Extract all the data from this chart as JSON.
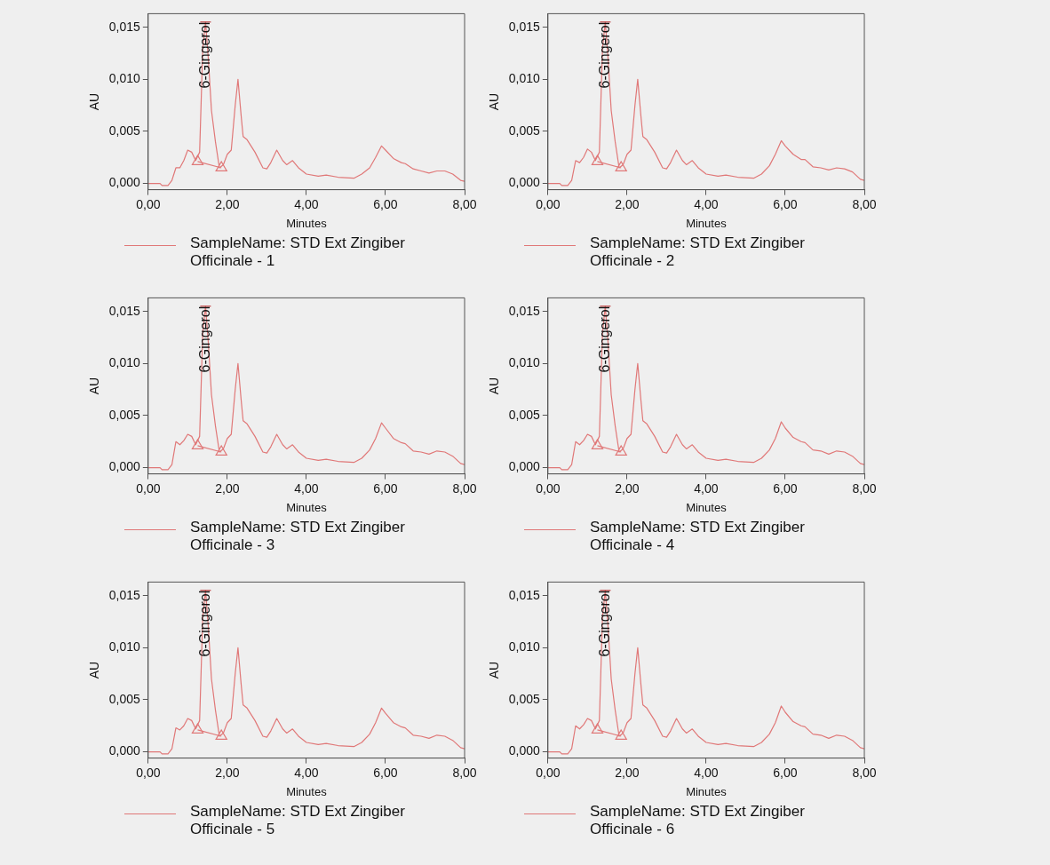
{
  "chart_data": [
    {
      "type": "line",
      "xlabel": "Minutes",
      "ylabel": "AU",
      "xlim": [
        0,
        8
      ],
      "ylim": [
        -0.0006,
        0.0163
      ],
      "xticks": [
        {
          "value": 0,
          "label": "0,00"
        },
        {
          "value": 2,
          "label": "2,00"
        },
        {
          "value": 4,
          "label": "4,00"
        },
        {
          "value": 6,
          "label": "6,00"
        },
        {
          "value": 8,
          "label": "8,00"
        }
      ],
      "yticks": [
        {
          "value": 0,
          "label": "0,000"
        },
        {
          "value": 0.005,
          "label": "0,005"
        },
        {
          "value": 0.01,
          "label": "0,010"
        },
        {
          "value": 0.015,
          "label": "0,015"
        }
      ],
      "legend": "bottom",
      "marker": "none",
      "annotations": [
        "6-Gingerol"
      ],
      "series": [
        {
          "name": "SampleName: STD Ext Zingiber Officinale - 1",
          "color": "#e07878",
          "x": [
            0,
            0.3,
            0.35,
            0.5,
            0.6,
            0.7,
            0.8,
            0.9,
            1.0,
            1.1,
            1.2,
            1.3,
            1.38,
            1.45,
            1.52,
            1.6,
            1.7,
            1.8,
            1.9,
            2.0,
            2.1,
            2.2,
            2.27,
            2.35,
            2.4,
            2.5,
            2.7,
            2.9,
            3.0,
            3.1,
            3.25,
            3.4,
            3.5,
            3.65,
            3.8,
            4.0,
            4.3,
            4.5,
            4.8,
            5.2,
            5.4,
            5.6,
            5.75,
            5.9,
            6.0,
            6.2,
            6.4,
            6.5,
            6.7,
            6.9,
            7.1,
            7.3,
            7.5,
            7.7,
            7.9,
            8.0
          ],
          "values": [
            0,
            0,
            -0.0002,
            -0.0002,
            0.0003,
            0.0015,
            0.0015,
            0.0022,
            0.0032,
            0.003,
            0.0022,
            0.003,
            0.013,
            0.0155,
            0.012,
            0.007,
            0.004,
            0.0015,
            0.0018,
            0.0028,
            0.0032,
            0.0075,
            0.01,
            0.0065,
            0.0045,
            0.0042,
            0.003,
            0.0015,
            0.0014,
            0.002,
            0.0032,
            0.0022,
            0.0018,
            0.0022,
            0.0015,
            0.0009,
            0.0007,
            0.0008,
            0.0006,
            0.0005,
            0.0009,
            0.0015,
            0.0025,
            0.0036,
            0.0032,
            0.0024,
            0.002,
            0.0019,
            0.0014,
            0.0012,
            0.001,
            0.0012,
            0.0012,
            0.0009,
            0.0003,
            0.0002
          ]
        },
        {
          "type": "line",
          "marker": "triangle",
          "color": "#e07878",
          "x": [
            1.25,
            1.85
          ],
          "values": [
            0.0021,
            0.0015
          ]
        }
      ]
    },
    {
      "type": "line",
      "xlabel": "Minutes",
      "ylabel": "AU",
      "xlim": [
        0,
        8
      ],
      "ylim": [
        -0.0006,
        0.0163
      ],
      "xticks": [
        {
          "value": 0,
          "label": "0,00"
        },
        {
          "value": 2,
          "label": "2,00"
        },
        {
          "value": 4,
          "label": "4,00"
        },
        {
          "value": 6,
          "label": "6,00"
        },
        {
          "value": 8,
          "label": "8,00"
        }
      ],
      "yticks": [
        {
          "value": 0,
          "label": "0,000"
        },
        {
          "value": 0.005,
          "label": "0,005"
        },
        {
          "value": 0.01,
          "label": "0,010"
        },
        {
          "value": 0.015,
          "label": "0,015"
        }
      ],
      "legend": "bottom",
      "marker": "none",
      "annotations": [
        "6-Gingerol"
      ],
      "series": [
        {
          "name": "SampleName: STD Ext Zingiber Officinale - 2",
          "color": "#e07878",
          "x": [
            0,
            0.3,
            0.35,
            0.5,
            0.6,
            0.7,
            0.8,
            0.9,
            1.0,
            1.1,
            1.2,
            1.3,
            1.38,
            1.45,
            1.52,
            1.6,
            1.7,
            1.8,
            1.9,
            2.0,
            2.1,
            2.2,
            2.27,
            2.35,
            2.4,
            2.5,
            2.7,
            2.9,
            3.0,
            3.1,
            3.25,
            3.4,
            3.5,
            3.65,
            3.8,
            4.0,
            4.3,
            4.5,
            4.8,
            5.2,
            5.4,
            5.6,
            5.75,
            5.9,
            6.0,
            6.2,
            6.4,
            6.5,
            6.7,
            6.9,
            7.1,
            7.3,
            7.5,
            7.7,
            7.9,
            8.0
          ],
          "values": [
            0,
            0,
            -0.0002,
            -0.0002,
            0.0003,
            0.0022,
            0.002,
            0.0025,
            0.0033,
            0.003,
            0.0022,
            0.003,
            0.013,
            0.0155,
            0.012,
            0.007,
            0.004,
            0.0015,
            0.0018,
            0.0028,
            0.0032,
            0.0075,
            0.01,
            0.0065,
            0.0045,
            0.0042,
            0.003,
            0.0015,
            0.0014,
            0.002,
            0.0032,
            0.0022,
            0.0018,
            0.0022,
            0.0015,
            0.0009,
            0.0007,
            0.0008,
            0.0006,
            0.0005,
            0.0009,
            0.0017,
            0.0028,
            0.0041,
            0.0036,
            0.0028,
            0.0023,
            0.0023,
            0.0016,
            0.0015,
            0.0013,
            0.0015,
            0.0014,
            0.0011,
            0.0004,
            0.0003
          ]
        },
        {
          "type": "line",
          "marker": "triangle",
          "color": "#e07878",
          "x": [
            1.25,
            1.85
          ],
          "values": [
            0.0021,
            0.0015
          ]
        }
      ]
    },
    {
      "type": "line",
      "xlabel": "Minutes",
      "ylabel": "AU",
      "xlim": [
        0,
        8
      ],
      "ylim": [
        -0.0006,
        0.0163
      ],
      "xticks": [
        {
          "value": 0,
          "label": "0,00"
        },
        {
          "value": 2,
          "label": "2,00"
        },
        {
          "value": 4,
          "label": "4,00"
        },
        {
          "value": 6,
          "label": "6,00"
        },
        {
          "value": 8,
          "label": "8,00"
        }
      ],
      "yticks": [
        {
          "value": 0,
          "label": "0,000"
        },
        {
          "value": 0.005,
          "label": "0,005"
        },
        {
          "value": 0.01,
          "label": "0,010"
        },
        {
          "value": 0.015,
          "label": "0,015"
        }
      ],
      "legend": "bottom",
      "marker": "none",
      "annotations": [
        "6-Gingerol"
      ],
      "series": [
        {
          "name": "SampleName: STD Ext Zingiber Officinale - 3",
          "color": "#e07878",
          "x": [
            0,
            0.3,
            0.35,
            0.5,
            0.6,
            0.7,
            0.8,
            0.9,
            1.0,
            1.1,
            1.2,
            1.3,
            1.38,
            1.45,
            1.52,
            1.6,
            1.7,
            1.8,
            1.9,
            2.0,
            2.1,
            2.2,
            2.27,
            2.35,
            2.4,
            2.5,
            2.7,
            2.9,
            3.0,
            3.1,
            3.25,
            3.4,
            3.5,
            3.65,
            3.8,
            4.0,
            4.3,
            4.5,
            4.8,
            5.2,
            5.4,
            5.6,
            5.75,
            5.9,
            6.0,
            6.2,
            6.4,
            6.5,
            6.7,
            6.9,
            7.1,
            7.3,
            7.5,
            7.7,
            7.9,
            8.0
          ],
          "values": [
            0,
            0,
            -0.0002,
            -0.0002,
            0.0003,
            0.0025,
            0.0022,
            0.0026,
            0.0032,
            0.003,
            0.0022,
            0.003,
            0.013,
            0.0155,
            0.012,
            0.007,
            0.004,
            0.0015,
            0.0018,
            0.0028,
            0.0032,
            0.0075,
            0.01,
            0.0065,
            0.0045,
            0.0042,
            0.003,
            0.0015,
            0.0014,
            0.002,
            0.0032,
            0.0022,
            0.0018,
            0.0022,
            0.0015,
            0.0009,
            0.0007,
            0.0008,
            0.0006,
            0.0005,
            0.0009,
            0.0017,
            0.0028,
            0.0043,
            0.0038,
            0.0028,
            0.0024,
            0.0023,
            0.0016,
            0.0015,
            0.0013,
            0.0016,
            0.0015,
            0.0011,
            0.0004,
            0.0003
          ]
        },
        {
          "type": "line",
          "marker": "triangle",
          "color": "#e07878",
          "x": [
            1.25,
            1.85
          ],
          "values": [
            0.0021,
            0.0015
          ]
        }
      ]
    },
    {
      "type": "line",
      "xlabel": "Minutes",
      "ylabel": "AU",
      "xlim": [
        0,
        8
      ],
      "ylim": [
        -0.0006,
        0.0163
      ],
      "xticks": [
        {
          "value": 0,
          "label": "0,00"
        },
        {
          "value": 2,
          "label": "2,00"
        },
        {
          "value": 4,
          "label": "4,00"
        },
        {
          "value": 6,
          "label": "6,00"
        },
        {
          "value": 8,
          "label": "8,00"
        }
      ],
      "yticks": [
        {
          "value": 0,
          "label": "0,000"
        },
        {
          "value": 0.005,
          "label": "0,005"
        },
        {
          "value": 0.01,
          "label": "0,010"
        },
        {
          "value": 0.015,
          "label": "0,015"
        }
      ],
      "legend": "bottom",
      "marker": "none",
      "annotations": [
        "6-Gingerol"
      ],
      "series": [
        {
          "name": "SampleName: STD Ext Zingiber Officinale - 4",
          "color": "#e07878",
          "x": [
            0,
            0.3,
            0.35,
            0.5,
            0.6,
            0.7,
            0.8,
            0.9,
            1.0,
            1.1,
            1.2,
            1.3,
            1.38,
            1.45,
            1.52,
            1.6,
            1.7,
            1.8,
            1.9,
            2.0,
            2.1,
            2.2,
            2.27,
            2.35,
            2.4,
            2.5,
            2.7,
            2.9,
            3.0,
            3.1,
            3.25,
            3.4,
            3.5,
            3.65,
            3.8,
            4.0,
            4.3,
            4.5,
            4.8,
            5.2,
            5.4,
            5.6,
            5.75,
            5.9,
            6.0,
            6.2,
            6.4,
            6.5,
            6.7,
            6.9,
            7.1,
            7.3,
            7.5,
            7.7,
            7.9,
            8.0
          ],
          "values": [
            0,
            0,
            -0.0002,
            -0.0002,
            0.0003,
            0.0025,
            0.0022,
            0.0026,
            0.0032,
            0.003,
            0.0022,
            0.003,
            0.013,
            0.0155,
            0.012,
            0.007,
            0.004,
            0.0015,
            0.0018,
            0.0028,
            0.0032,
            0.0075,
            0.01,
            0.0065,
            0.0045,
            0.0042,
            0.003,
            0.0015,
            0.0014,
            0.002,
            0.0032,
            0.0022,
            0.0018,
            0.0022,
            0.0015,
            0.0009,
            0.0007,
            0.0008,
            0.0006,
            0.0005,
            0.0009,
            0.0017,
            0.0028,
            0.0044,
            0.0038,
            0.0029,
            0.0025,
            0.0024,
            0.0017,
            0.0016,
            0.0013,
            0.0016,
            0.0015,
            0.0011,
            0.0004,
            0.0003
          ]
        },
        {
          "type": "line",
          "marker": "triangle",
          "color": "#e07878",
          "x": [
            1.25,
            1.85
          ],
          "values": [
            0.0021,
            0.0015
          ]
        }
      ]
    },
    {
      "type": "line",
      "xlabel": "Minutes",
      "ylabel": "AU",
      "xlim": [
        0,
        8
      ],
      "ylim": [
        -0.0006,
        0.0163
      ],
      "xticks": [
        {
          "value": 0,
          "label": "0,00"
        },
        {
          "value": 2,
          "label": "2,00"
        },
        {
          "value": 4,
          "label": "4,00"
        },
        {
          "value": 6,
          "label": "6,00"
        },
        {
          "value": 8,
          "label": "8,00"
        }
      ],
      "yticks": [
        {
          "value": 0,
          "label": "0,000"
        },
        {
          "value": 0.005,
          "label": "0,005"
        },
        {
          "value": 0.01,
          "label": "0,010"
        },
        {
          "value": 0.015,
          "label": "0,015"
        }
      ],
      "legend": "bottom",
      "marker": "none",
      "annotations": [
        "6-Gingerol"
      ],
      "series": [
        {
          "name": "SampleName: STD Ext Zingiber Officinale - 5",
          "color": "#e07878",
          "x": [
            0,
            0.3,
            0.35,
            0.5,
            0.6,
            0.7,
            0.8,
            0.9,
            1.0,
            1.1,
            1.2,
            1.3,
            1.38,
            1.45,
            1.52,
            1.6,
            1.7,
            1.8,
            1.9,
            2.0,
            2.1,
            2.2,
            2.27,
            2.35,
            2.4,
            2.5,
            2.7,
            2.9,
            3.0,
            3.1,
            3.25,
            3.4,
            3.5,
            3.65,
            3.8,
            4.0,
            4.3,
            4.5,
            4.8,
            5.2,
            5.4,
            5.6,
            5.75,
            5.9,
            6.0,
            6.2,
            6.4,
            6.5,
            6.7,
            6.9,
            7.1,
            7.3,
            7.5,
            7.7,
            7.9,
            8.0
          ],
          "values": [
            0,
            0,
            -0.0002,
            -0.0002,
            0.0003,
            0.0023,
            0.0021,
            0.0025,
            0.0032,
            0.003,
            0.0022,
            0.003,
            0.013,
            0.0155,
            0.012,
            0.007,
            0.004,
            0.0015,
            0.0018,
            0.0028,
            0.0032,
            0.0075,
            0.01,
            0.0065,
            0.0045,
            0.0042,
            0.003,
            0.0015,
            0.0014,
            0.002,
            0.0032,
            0.0022,
            0.0018,
            0.0022,
            0.0015,
            0.0009,
            0.0007,
            0.0008,
            0.0006,
            0.0005,
            0.0009,
            0.0017,
            0.0028,
            0.0042,
            0.0037,
            0.0028,
            0.0024,
            0.0023,
            0.0016,
            0.0015,
            0.0013,
            0.0016,
            0.0015,
            0.0011,
            0.0004,
            0.0003
          ]
        },
        {
          "type": "line",
          "marker": "triangle",
          "color": "#e07878",
          "x": [
            1.25,
            1.85
          ],
          "values": [
            0.0021,
            0.0015
          ]
        }
      ]
    },
    {
      "type": "line",
      "xlabel": "Minutes",
      "ylabel": "AU",
      "xlim": [
        0,
        8
      ],
      "ylim": [
        -0.0006,
        0.0163
      ],
      "xticks": [
        {
          "value": 0,
          "label": "0,00"
        },
        {
          "value": 2,
          "label": "2,00"
        },
        {
          "value": 4,
          "label": "4,00"
        },
        {
          "value": 6,
          "label": "6,00"
        },
        {
          "value": 8,
          "label": "8,00"
        }
      ],
      "yticks": [
        {
          "value": 0,
          "label": "0,000"
        },
        {
          "value": 0.005,
          "label": "0,005"
        },
        {
          "value": 0.01,
          "label": "0,010"
        },
        {
          "value": 0.015,
          "label": "0,015"
        }
      ],
      "legend": "bottom",
      "marker": "none",
      "annotations": [
        "6-Gingerol"
      ],
      "series": [
        {
          "name": "SampleName: STD Ext Zingiber Officinale - 6",
          "color": "#e07878",
          "x": [
            0,
            0.3,
            0.35,
            0.5,
            0.6,
            0.7,
            0.8,
            0.9,
            1.0,
            1.1,
            1.2,
            1.3,
            1.38,
            1.45,
            1.52,
            1.6,
            1.7,
            1.8,
            1.9,
            2.0,
            2.1,
            2.2,
            2.27,
            2.35,
            2.4,
            2.5,
            2.7,
            2.9,
            3.0,
            3.1,
            3.25,
            3.4,
            3.5,
            3.65,
            3.8,
            4.0,
            4.3,
            4.5,
            4.8,
            5.2,
            5.4,
            5.6,
            5.75,
            5.9,
            6.0,
            6.2,
            6.4,
            6.5,
            6.7,
            6.9,
            7.1,
            7.3,
            7.5,
            7.7,
            7.9,
            8.0
          ],
          "values": [
            0,
            0,
            -0.0002,
            -0.0002,
            0.0003,
            0.0025,
            0.0022,
            0.0026,
            0.0032,
            0.003,
            0.0022,
            0.003,
            0.013,
            0.0155,
            0.012,
            0.007,
            0.004,
            0.0015,
            0.0018,
            0.0028,
            0.0032,
            0.0075,
            0.01,
            0.0065,
            0.0045,
            0.0042,
            0.003,
            0.0015,
            0.0014,
            0.002,
            0.0032,
            0.0022,
            0.0018,
            0.0022,
            0.0015,
            0.0009,
            0.0007,
            0.0008,
            0.0006,
            0.0005,
            0.0009,
            0.0017,
            0.0028,
            0.0044,
            0.0038,
            0.0029,
            0.0025,
            0.0024,
            0.0017,
            0.0016,
            0.0013,
            0.0016,
            0.0015,
            0.0011,
            0.0004,
            0.0003
          ]
        },
        {
          "type": "line",
          "marker": "triangle",
          "color": "#e07878",
          "x": [
            1.25,
            1.85
          ],
          "values": [
            0.0021,
            0.0015
          ]
        }
      ]
    }
  ]
}
